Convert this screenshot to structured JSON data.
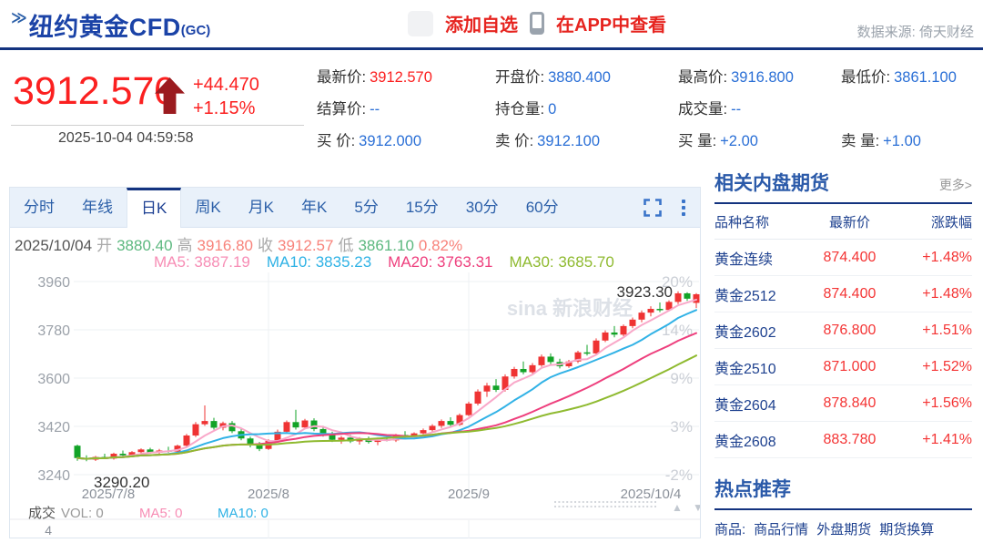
{
  "header": {
    "title_icon": "≫",
    "title": "纽约黄金CFD",
    "title_sub": "(GC)",
    "add_watchlist": "添加自选",
    "view_in_app": "在APP中查看",
    "data_source": "数据来源: 倚天财经"
  },
  "quote": {
    "price": "3912.570",
    "change": "+44.470",
    "change_pct": "+1.15%",
    "timestamp": "2025-10-04 04:59:58",
    "rows": [
      [
        {
          "l": "最新价:",
          "v": "3912.570",
          "red": true
        },
        {
          "l": "开盘价:",
          "v": "3880.400"
        },
        {
          "l": "最高价:",
          "v": "3916.800"
        },
        {
          "l": "最低价:",
          "v": "3861.100"
        }
      ],
      [
        {
          "l": "结算价:",
          "v": "--"
        },
        {
          "l": "持仓量:",
          "v": "0"
        },
        {
          "l": "成交量:",
          "v": "--"
        }
      ],
      [
        {
          "l": "买 价:",
          "v": "3912.000"
        },
        {
          "l": "卖 价:",
          "v": "3912.100"
        },
        {
          "l": "买 量:",
          "v": "+2.00"
        },
        {
          "l": "卖 量:",
          "v": "+1.00"
        }
      ]
    ]
  },
  "chart": {
    "tabs": [
      "分时",
      "年线",
      "日K",
      "周K",
      "月K",
      "年K",
      "5分",
      "15分",
      "30分",
      "60分"
    ],
    "active_tab": "日K",
    "info": {
      "date": "2025/10/04",
      "open_label": "开",
      "open": "3880.40",
      "high_label": "高",
      "high": "3916.80",
      "close_label": "收",
      "close": "3912.57",
      "low_label": "低",
      "low": "3861.10",
      "pct": "0.82%"
    },
    "ma": {
      "ma5": "MA5: 3887.19",
      "ma10": "MA10: 3835.23",
      "ma20": "MA20: 3763.31",
      "ma30": "MA30: 3685.70"
    }
  },
  "chart_data": {
    "type": "candlestick",
    "title": "纽约黄金CFD (GC) 日K",
    "y_ticks": [
      3960,
      3780,
      3600,
      3420,
      3240
    ],
    "right_ticks": [
      "20%",
      "14%",
      "9%",
      "3%",
      "-2%"
    ],
    "x_labels": [
      "2025/7/8",
      "2025/8",
      "2025/9",
      "2025/10/4"
    ],
    "gridline_days": [
      21,
      43
    ],
    "high_annotation": "3923.30",
    "low_annotation": "3290.20",
    "up_color": "#ef3333",
    "down_color": "#12a327",
    "ma_periods": [
      5,
      10,
      20,
      30
    ],
    "ma_colors": [
      "#f9a8c9",
      "#31b2e6",
      "#ee3f7d",
      "#8fba30"
    ],
    "watermark": "sina 新浪财经",
    "volume": {
      "pane_label": "成交",
      "vol_label": "VOL: 0",
      "ma5_label": "MA5: 0",
      "ma10_label": "MA10: 0",
      "y_tick": "4"
    },
    "candles": [
      [
        3348,
        3352,
        3292,
        3302
      ],
      [
        3302,
        3312,
        3290.2,
        3296
      ],
      [
        3296,
        3310,
        3291,
        3306
      ],
      [
        3306,
        3318,
        3298,
        3300
      ],
      [
        3300,
        3322,
        3296,
        3318
      ],
      [
        3318,
        3330,
        3308,
        3312
      ],
      [
        3312,
        3328,
        3305,
        3324
      ],
      [
        3324,
        3338,
        3316,
        3334
      ],
      [
        3334,
        3340,
        3318,
        3322
      ],
      [
        3322,
        3336,
        3314,
        3330
      ],
      [
        3330,
        3344,
        3322,
        3326
      ],
      [
        3326,
        3352,
        3320,
        3348
      ],
      [
        3348,
        3392,
        3344,
        3386
      ],
      [
        3386,
        3436,
        3380,
        3428
      ],
      [
        3428,
        3498,
        3422,
        3440
      ],
      [
        3440,
        3452,
        3408,
        3415
      ],
      [
        3415,
        3438,
        3405,
        3432
      ],
      [
        3432,
        3440,
        3395,
        3402
      ],
      [
        3402,
        3410,
        3368,
        3375
      ],
      [
        3375,
        3382,
        3342,
        3350
      ],
      [
        3350,
        3362,
        3328,
        3336
      ],
      [
        3336,
        3372,
        3332,
        3366
      ],
      [
        3366,
        3408,
        3362,
        3400
      ],
      [
        3400,
        3442,
        3396,
        3436
      ],
      [
        3436,
        3482,
        3408,
        3416
      ],
      [
        3416,
        3448,
        3410,
        3442
      ],
      [
        3442,
        3450,
        3402,
        3410
      ],
      [
        3410,
        3422,
        3382,
        3390
      ],
      [
        3390,
        3400,
        3362,
        3370
      ],
      [
        3370,
        3384,
        3355,
        3378
      ],
      [
        3378,
        3388,
        3358,
        3364
      ],
      [
        3364,
        3380,
        3352,
        3374
      ],
      [
        3374,
        3382,
        3356,
        3362
      ],
      [
        3362,
        3378,
        3350,
        3372
      ],
      [
        3372,
        3386,
        3364,
        3368
      ],
      [
        3368,
        3392,
        3362,
        3388
      ],
      [
        3388,
        3402,
        3376,
        3380
      ],
      [
        3380,
        3398,
        3372,
        3394
      ],
      [
        3394,
        3412,
        3386,
        3406
      ],
      [
        3406,
        3428,
        3398,
        3422
      ],
      [
        3422,
        3446,
        3414,
        3440
      ],
      [
        3440,
        3454,
        3420,
        3426
      ],
      [
        3426,
        3468,
        3422,
        3462
      ],
      [
        3462,
        3512,
        3458,
        3505
      ],
      [
        3505,
        3558,
        3498,
        3550
      ],
      [
        3550,
        3582,
        3530,
        3572
      ],
      [
        3572,
        3596,
        3548,
        3556
      ],
      [
        3556,
        3614,
        3550,
        3606
      ],
      [
        3606,
        3642,
        3598,
        3634
      ],
      [
        3634,
        3662,
        3614,
        3622
      ],
      [
        3622,
        3656,
        3616,
        3648
      ],
      [
        3648,
        3688,
        3642,
        3680
      ],
      [
        3680,
        3692,
        3652,
        3660
      ],
      [
        3660,
        3672,
        3636,
        3644
      ],
      [
        3644,
        3668,
        3638,
        3662
      ],
      [
        3662,
        3702,
        3656,
        3696
      ],
      [
        3696,
        3724,
        3684,
        3692
      ],
      [
        3692,
        3748,
        3688,
        3740
      ],
      [
        3740,
        3778,
        3734,
        3770
      ],
      [
        3770,
        3794,
        3752,
        3762
      ],
      [
        3762,
        3800,
        3756,
        3794
      ],
      [
        3794,
        3826,
        3786,
        3818
      ],
      [
        3818,
        3852,
        3808,
        3844
      ],
      [
        3844,
        3868,
        3830,
        3858
      ],
      [
        3858,
        3882,
        3846,
        3854
      ],
      [
        3854,
        3890,
        3850,
        3884
      ],
      [
        3884,
        3923.3,
        3876,
        3916
      ],
      [
        3916,
        3920,
        3888,
        3896
      ],
      [
        3880.4,
        3916.8,
        3861.1,
        3912.57
      ]
    ]
  },
  "sidebar": {
    "title": "相关内盘期货",
    "more": "更多>",
    "columns": [
      "品种名称",
      "最新价",
      "涨跌幅"
    ],
    "rows": [
      {
        "name": "黄金连续",
        "price": "874.400",
        "pct": "+1.48%"
      },
      {
        "name": "黄金2512",
        "price": "874.400",
        "pct": "+1.48%"
      },
      {
        "name": "黄金2602",
        "price": "876.800",
        "pct": "+1.51%"
      },
      {
        "name": "黄金2510",
        "price": "871.000",
        "pct": "+1.52%"
      },
      {
        "name": "黄金2604",
        "price": "878.840",
        "pct": "+1.56%"
      },
      {
        "name": "黄金2608",
        "price": "883.780",
        "pct": "+1.41%"
      }
    ],
    "hot_title": "热点推荐",
    "hot_label": "商品:",
    "hot_links": [
      "商品行情",
      "外盘期货",
      "期货换算"
    ]
  }
}
